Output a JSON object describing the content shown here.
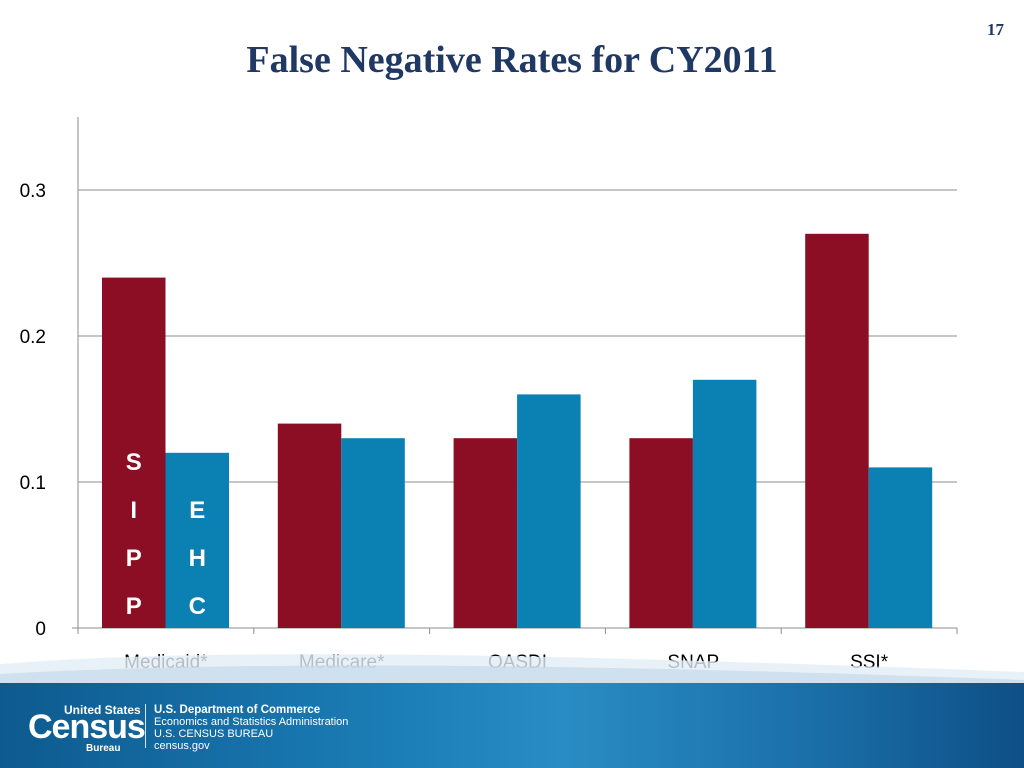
{
  "slide": {
    "number": "17",
    "title": "False Negative Rates for CY2011"
  },
  "chart_data": {
    "type": "bar",
    "categories": [
      "Medicaid*",
      "Medicare*",
      "OASDI",
      "SNAP",
      "SSI*"
    ],
    "series": [
      {
        "values": [
          0.24,
          0.14,
          0.13,
          0.13,
          0.27
        ],
        "color": "#8b0e24"
      },
      {
        "values": [
          0.12,
          0.13,
          0.16,
          0.17,
          0.11
        ],
        "color": "#0b80b3"
      }
    ],
    "bar_letters": [
      {
        "series": 0,
        "category": 0,
        "letters": [
          "S",
          "I",
          "P",
          "P"
        ]
      },
      {
        "series": 1,
        "category": 0,
        "letters": [
          "E",
          "H",
          "C"
        ]
      }
    ],
    "yticks": [
      0,
      0.1,
      0.2,
      0.3
    ],
    "ytick_labels": [
      "0",
      "0.1",
      "0.2",
      "0.3"
    ],
    "ylim": [
      0,
      0.35
    ],
    "grid": true,
    "legend": "none"
  },
  "footer": {
    "logo": {
      "top": "United States",
      "main": "Census",
      "sub": "Bureau"
    },
    "agency_lines": [
      "U.S. Department of Commerce",
      "Economics and Statistics Administration",
      "U.S. CENSUS BUREAU",
      "census.gov"
    ]
  }
}
